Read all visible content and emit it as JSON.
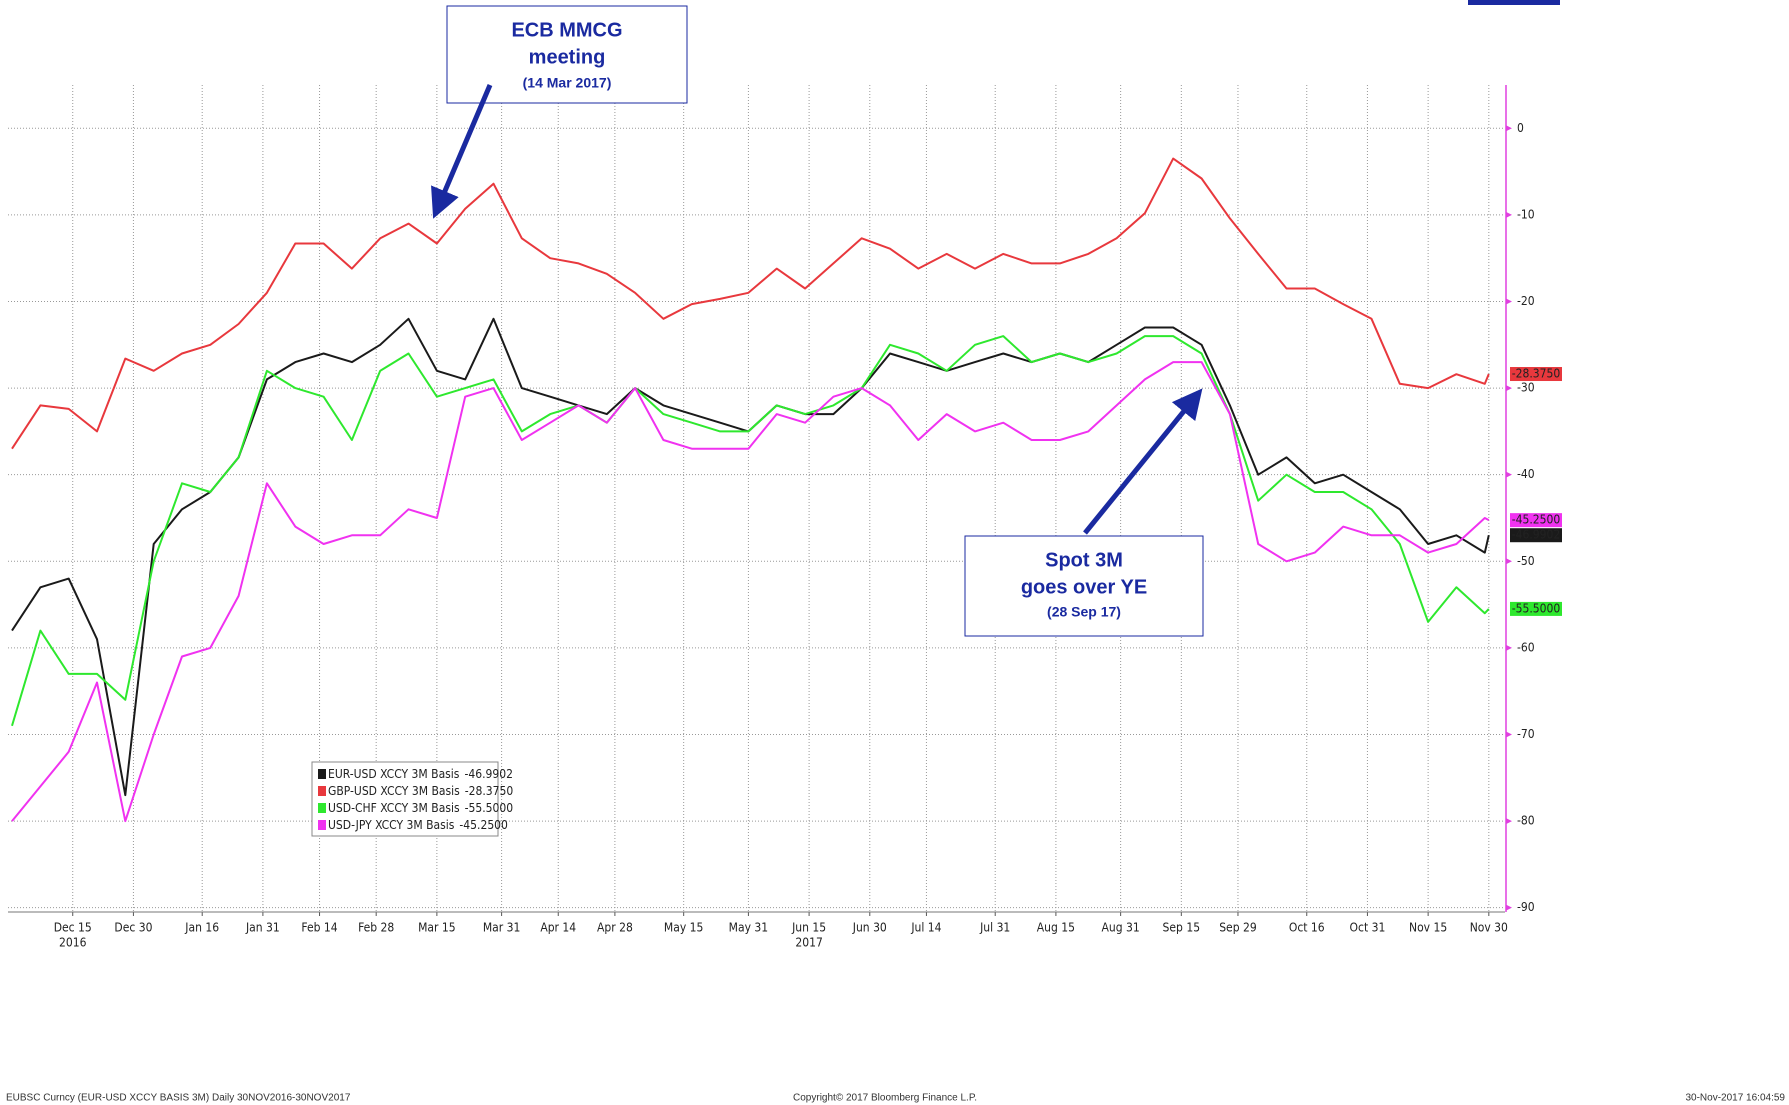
{
  "chart_data": {
    "type": "line",
    "x": [
      "2016-11-30",
      "2016-12-07",
      "2016-12-14",
      "2016-12-21",
      "2016-12-28",
      "2017-01-04",
      "2017-01-11",
      "2017-01-18",
      "2017-01-25",
      "2017-02-01",
      "2017-02-08",
      "2017-02-15",
      "2017-02-22",
      "2017-03-01",
      "2017-03-08",
      "2017-03-15",
      "2017-03-22",
      "2017-03-29",
      "2017-04-05",
      "2017-04-12",
      "2017-04-19",
      "2017-04-26",
      "2017-05-03",
      "2017-05-10",
      "2017-05-17",
      "2017-05-24",
      "2017-05-31",
      "2017-06-07",
      "2017-06-14",
      "2017-06-21",
      "2017-06-28",
      "2017-07-05",
      "2017-07-12",
      "2017-07-19",
      "2017-07-26",
      "2017-08-02",
      "2017-08-09",
      "2017-08-16",
      "2017-08-23",
      "2017-08-30",
      "2017-09-06",
      "2017-09-13",
      "2017-09-20",
      "2017-09-27",
      "2017-10-04",
      "2017-10-11",
      "2017-10-18",
      "2017-10-25",
      "2017-11-01",
      "2017-11-08",
      "2017-11-15",
      "2017-11-22",
      "2017-11-29",
      "2017-11-30"
    ],
    "series": [
      {
        "name": "EUR-USD XCCY 3M Basis",
        "color": "#1a1a1a",
        "values": [
          -58,
          -53,
          -52,
          -59,
          -77,
          -48,
          -44,
          -42,
          -38,
          -29,
          -27,
          -26,
          -27,
          -25,
          -22,
          -28,
          -29,
          -22,
          -30,
          -31,
          -32,
          -33,
          -30,
          -32,
          -33,
          -34,
          -35,
          -32,
          -33,
          -33,
          -30,
          -26,
          -27,
          -28,
          -27,
          -26,
          -27,
          -26,
          -27,
          -25,
          -23,
          -23,
          -25,
          -32,
          -40,
          -38,
          -41,
          -40,
          -42,
          -44,
          -48,
          -47,
          -49,
          -46.9902
        ],
        "value_labels": [
          null,
          null,
          null,
          null,
          null,
          null,
          null,
          null,
          null,
          null,
          null,
          null,
          null,
          null,
          null,
          null,
          null,
          null,
          null,
          null,
          null,
          null,
          null,
          null,
          null,
          null,
          null,
          null,
          null,
          null,
          null,
          null,
          null,
          null,
          null,
          null,
          null,
          null,
          null,
          null,
          null,
          null,
          null,
          null,
          null,
          null,
          null,
          null,
          null,
          null,
          null,
          null,
          null,
          "-46.9902"
        ]
      },
      {
        "name": "GBP-USD XCCY 3M Basis",
        "color": "#e8383d",
        "values": [
          -37,
          -32,
          -32.4,
          -35,
          -26.6,
          -28,
          -26,
          -25,
          -22.6,
          -19,
          -13.3,
          -13.3,
          -16.2,
          -12.7,
          -11,
          -13.3,
          -9.3,
          -6.4,
          -12.7,
          -15,
          -15.6,
          -16.8,
          -19,
          -22,
          -20.3,
          -19.7,
          -19,
          -16.2,
          -18.5,
          -15.6,
          -12.7,
          -13.9,
          -16.2,
          -14.5,
          -16.2,
          -14.5,
          -15.6,
          -15.6,
          -14.5,
          -12.7,
          -9.8,
          -3.5,
          -5.8,
          -10.4,
          -14.5,
          -18.5,
          -18.5,
          -20.3,
          -22,
          -29.5,
          -30,
          -28.4,
          -29.5,
          -28.375
        ],
        "value_labels": [
          null,
          null,
          null,
          null,
          null,
          null,
          null,
          null,
          null,
          null,
          null,
          null,
          null,
          null,
          null,
          null,
          null,
          null,
          null,
          null,
          null,
          null,
          null,
          null,
          null,
          null,
          null,
          null,
          null,
          null,
          null,
          null,
          null,
          null,
          null,
          null,
          null,
          null,
          null,
          null,
          null,
          null,
          null,
          null,
          null,
          null,
          null,
          null,
          null,
          null,
          null,
          null,
          null,
          "-28.3750"
        ]
      },
      {
        "name": "USD-CHF XCCY 3M Basis",
        "color": "#2ee82e",
        "values": [
          -69,
          -58,
          -63,
          -63,
          -66,
          -50,
          -41,
          -42,
          -38,
          -28,
          -30,
          -31,
          -36,
          -28,
          -26,
          -31,
          -30,
          -29,
          -35,
          -33,
          -32,
          -34,
          -30,
          -33,
          -34,
          -35,
          -35,
          -32,
          -33,
          -32,
          -30,
          -25,
          -26,
          -28,
          -25,
          -24,
          -27,
          -26,
          -27,
          -26,
          -24,
          -24,
          -26,
          -33,
          -43,
          -40,
          -42,
          -42,
          -44,
          -48,
          -57,
          -53,
          -56,
          -55.5
        ],
        "value_labels": [
          null,
          null,
          null,
          null,
          null,
          null,
          null,
          null,
          null,
          null,
          null,
          null,
          null,
          null,
          null,
          null,
          null,
          null,
          null,
          null,
          null,
          null,
          null,
          null,
          null,
          null,
          null,
          null,
          null,
          null,
          null,
          null,
          null,
          null,
          null,
          null,
          null,
          null,
          null,
          null,
          null,
          null,
          null,
          null,
          null,
          null,
          null,
          null,
          null,
          null,
          null,
          null,
          null,
          "-55.5000"
        ]
      },
      {
        "name": "USD-JPY XCCY 3M Basis",
        "color": "#f032f0",
        "values": [
          -80,
          -76,
          -72,
          -64,
          -80,
          -70,
          -61,
          -60,
          -54,
          -41,
          -46,
          -48,
          -47,
          -47,
          -44,
          -45,
          -31,
          -30,
          -36,
          -34,
          -32,
          -34,
          -30,
          -36,
          -37,
          -37,
          -37,
          -33,
          -34,
          -31,
          -30,
          -32,
          -36,
          -33,
          -35,
          -34,
          -36,
          -36,
          -35,
          -32,
          -29,
          -27,
          -27,
          -33,
          -48,
          -50,
          -49,
          -46,
          -47,
          -47,
          -49,
          -48,
          -45,
          -45.25
        ],
        "value_labels": [
          null,
          null,
          null,
          null,
          null,
          null,
          null,
          null,
          null,
          null,
          null,
          null,
          null,
          null,
          null,
          null,
          null,
          null,
          null,
          null,
          null,
          null,
          null,
          null,
          null,
          null,
          null,
          null,
          null,
          null,
          null,
          null,
          null,
          null,
          null,
          null,
          null,
          null,
          null,
          null,
          null,
          null,
          null,
          null,
          null,
          null,
          null,
          null,
          null,
          null,
          null,
          null,
          null,
          "-45.2500"
        ]
      }
    ],
    "xlim": [
      "2016-11-29",
      "2017-12-04"
    ],
    "xticks": [
      {
        "value": "2016-12-15",
        "label": "Dec 15"
      },
      {
        "value": "2016-12-30",
        "label": "Dec 30"
      },
      {
        "value": "2017-01-16",
        "label": "Jan 16"
      },
      {
        "value": "2017-01-31",
        "label": "Jan 31"
      },
      {
        "value": "2017-02-14",
        "label": "Feb 14"
      },
      {
        "value": "2017-02-28",
        "label": "Feb 28"
      },
      {
        "value": "2017-03-15",
        "label": "Mar 15"
      },
      {
        "value": "2017-03-31",
        "label": "Mar 31"
      },
      {
        "value": "2017-04-14",
        "label": "Apr 14"
      },
      {
        "value": "2017-04-28",
        "label": "Apr 28"
      },
      {
        "value": "2017-05-15",
        "label": "May 15"
      },
      {
        "value": "2017-05-31",
        "label": "May 31"
      },
      {
        "value": "2017-06-15",
        "label": "Jun 15"
      },
      {
        "value": "2017-06-30",
        "label": "Jun 30"
      },
      {
        "value": "2017-07-14",
        "label": "Jul 14"
      },
      {
        "value": "2017-07-31",
        "label": "Jul 31"
      },
      {
        "value": "2017-08-15",
        "label": "Aug 15"
      },
      {
        "value": "2017-08-31",
        "label": "Aug 31"
      },
      {
        "value": "2017-09-15",
        "label": "Sep 15"
      },
      {
        "value": "2017-09-29",
        "label": "Sep 29"
      },
      {
        "value": "2017-10-16",
        "label": "Oct 16"
      },
      {
        "value": "2017-10-31",
        "label": "Oct 31"
      },
      {
        "value": "2017-11-15",
        "label": "Nov 15"
      },
      {
        "value": "2017-11-30",
        "label": "Nov 30"
      }
    ],
    "xtick_years": [
      {
        "value": "2016-12-15",
        "label": "2016"
      },
      {
        "value": "2017-06-15",
        "label": "2017"
      }
    ],
    "ylim": [
      -90.5,
      5
    ],
    "yticks": [
      0,
      -10,
      -20,
      -30,
      -40,
      -50,
      -60,
      -70,
      -80,
      -90
    ],
    "y_axis_side": "right",
    "grid": true,
    "annotations": [
      {
        "lines": [
          "ECB MMCG",
          "meeting"
        ],
        "note": "(14 Mar 2017)"
      },
      {
        "lines": [
          "Spot 3M",
          "goes over YE"
        ],
        "note": "(28 Sep 17)"
      }
    ],
    "footer": {
      "left": "EUBSC Curncy (EUR-USD XCCY BASIS 3M)  Daily 30NOV2016-30NOV2017",
      "center": "Copyright© 2017 Bloomberg Finance L.P.",
      "right": "30-Nov-2017 16:04:59"
    }
  }
}
